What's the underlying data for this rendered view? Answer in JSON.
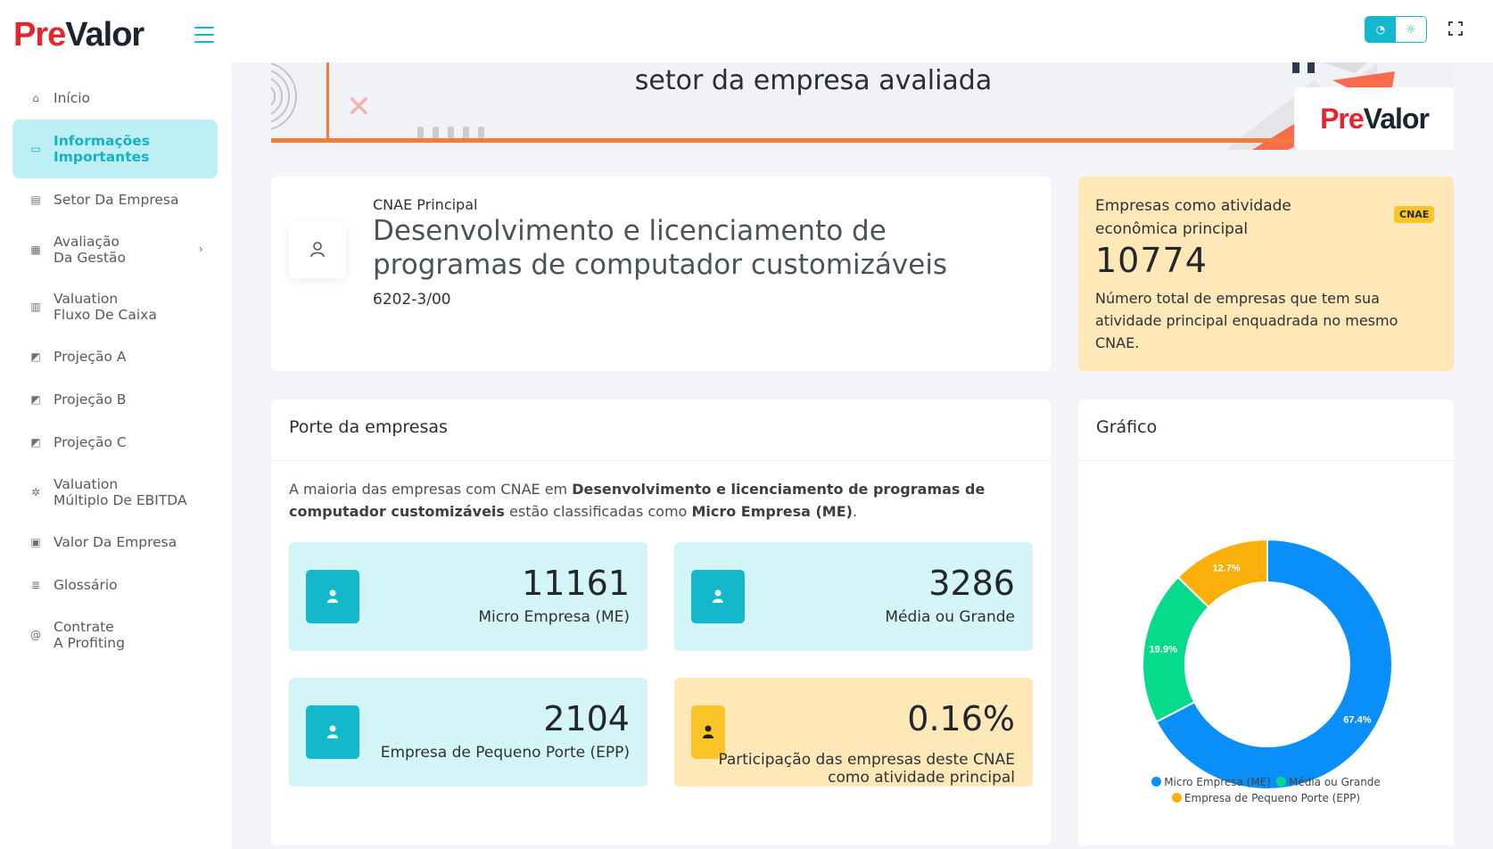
{
  "sidebar": {
    "logo": {
      "pre": "Pre",
      "valor": "Valor"
    },
    "items": [
      {
        "label": "Início",
        "icon": "home-icon"
      },
      {
        "label": "Informações\nImportantes",
        "icon": "inbox-icon",
        "active": true
      },
      {
        "label": "Setor Da Empresa",
        "icon": "id-card-icon"
      },
      {
        "label": "Avaliação\nDa Gestão",
        "icon": "calendar-icon",
        "chevron": true
      },
      {
        "label": "Valuation\nFluxo De Caixa",
        "icon": "bar-chart-icon"
      },
      {
        "label": "Projeção A",
        "icon": "area-chart-icon"
      },
      {
        "label": "Projeção B",
        "icon": "area-chart-icon"
      },
      {
        "label": "Projeção C",
        "icon": "area-chart-icon"
      },
      {
        "label": "Valuation\nMúltiplo De EBITDA",
        "icon": "settings-icon"
      },
      {
        "label": "Valor Da Empresa",
        "icon": "money-icon"
      },
      {
        "label": "Glossário",
        "icon": "list-icon"
      },
      {
        "label": "Contrate\nA Profiting",
        "icon": "at-icon"
      }
    ]
  },
  "banner": {
    "title": "setor da empresa avaliada",
    "logo": {
      "pre": "Pre",
      "valor": "Valor"
    }
  },
  "cnae": {
    "label": "CNAE Principal",
    "title": "Desenvolvimento e licenciamento de programas de computador customizáveis",
    "code": "6202-3/00"
  },
  "stat": {
    "heading": "Empresas como atividade econômica principal",
    "badge": "CNAE",
    "value": "10774",
    "description": "Número total de empresas que tem sua atividade principal enquadrada no mesmo CNAE."
  },
  "porte": {
    "title": "Porte da empresas",
    "text_prefix": "A maioria das empresas com CNAE em ",
    "text_bold1": "Desenvolvimento e licenciamento de programas de computador customizáveis",
    "text_middle": " estão classificadas como ",
    "text_bold2": "Micro Empresa (ME)",
    "text_suffix": ".",
    "tiles": [
      {
        "value": "11161",
        "label": "Micro Empresa (ME)"
      },
      {
        "value": "3286",
        "label": "Média ou Grande"
      },
      {
        "value": "2104",
        "label": "Empresa de Pequeno Porte (EPP)"
      },
      {
        "value": "0.16%",
        "label": "Participação das empresas deste CNAE como atividade principal"
      }
    ]
  },
  "grafico": {
    "title": "Gráfico"
  },
  "chart_data": {
    "type": "pie",
    "categories": [
      "Micro Empresa (ME)",
      "Média ou Grande",
      "Empresa de Pequeno Porte (EPP)"
    ],
    "values": [
      67.4,
      19.9,
      12.7
    ],
    "labels": [
      "67.4%",
      "19.9%",
      "12.7%"
    ],
    "colors": [
      "#0a8ff8",
      "#06db8c",
      "#fbaf0b"
    ],
    "legend": "bottom"
  }
}
